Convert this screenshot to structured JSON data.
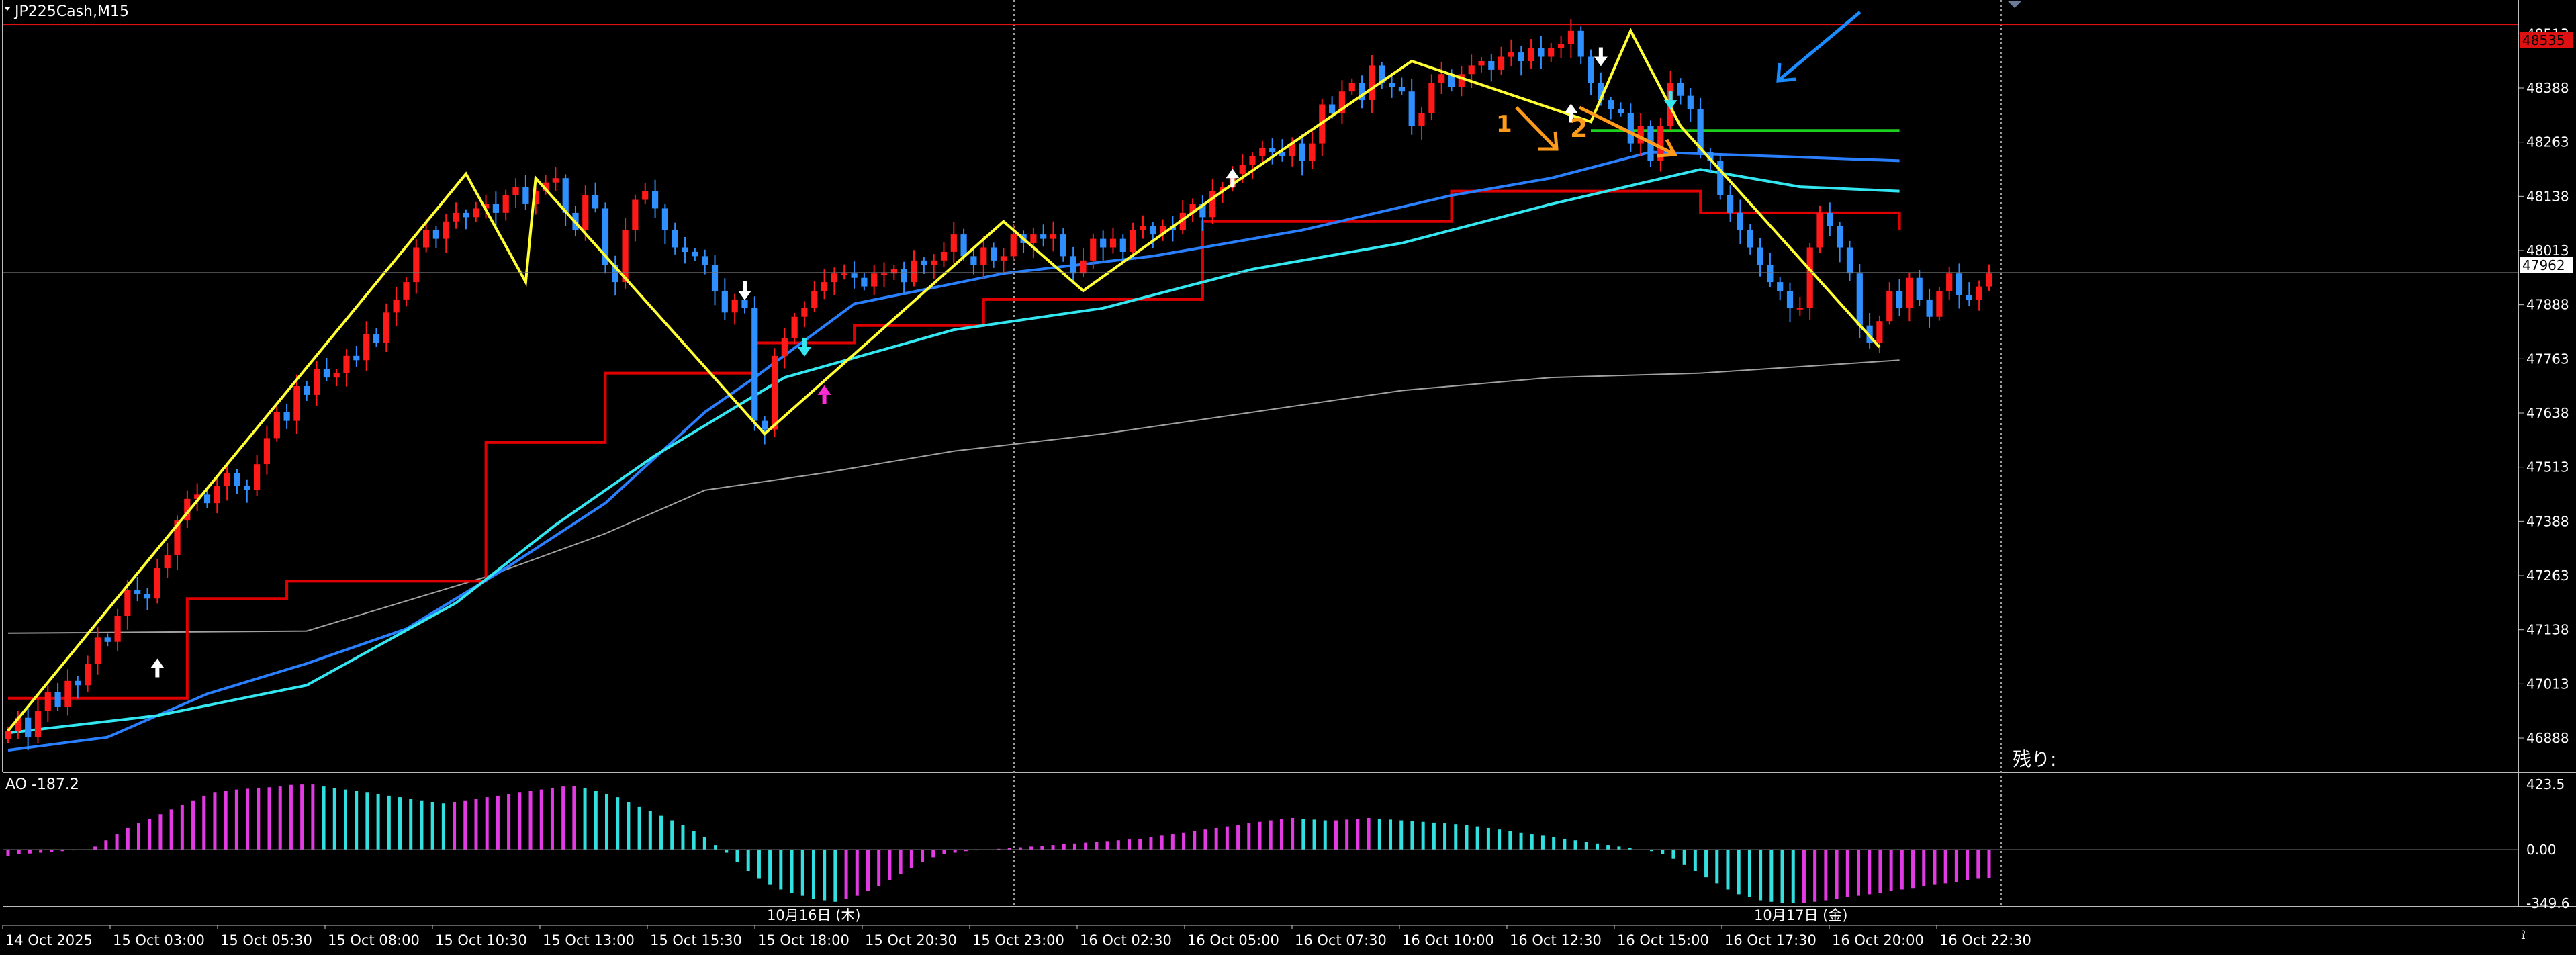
{
  "window": {
    "symbol_label": "JP225Cash,M15"
  },
  "colors": {
    "background": "#000000",
    "grid": "#cfcfcf",
    "bull_candle": "#ff1a1a",
    "bear_candle": "#2f8fff",
    "zigzag": "#ffff33",
    "red_line": "#e00000",
    "blue_line": "#2a7fff",
    "cyan_line": "#33e6f0",
    "green_line": "#1ed11e",
    "gray_line": "#a0a0a0",
    "ao_up": "#e33be3",
    "ao_down": "#33e0e0",
    "annotation": "#ff9a1a",
    "annotation_arrow": "#1a8cff"
  },
  "price_axis": {
    "ticks": [
      "48513",
      "48388",
      "48263",
      "48138",
      "48013",
      "47888",
      "47763",
      "47638",
      "47513",
      "47388",
      "47263",
      "47138",
      "47013",
      "46888"
    ],
    "current_price": "47962",
    "top_line_price": "48535"
  },
  "time_axis": {
    "labels": [
      "14 Oct 2025",
      "15 Oct 03:00",
      "15 Oct 05:30",
      "15 Oct 08:00",
      "15 Oct 10:30",
      "15 Oct 13:00",
      "15 Oct 15:30",
      "15 Oct 18:00",
      "15 Oct 20:30",
      "15 Oct 23:00",
      "16 Oct 02:30",
      "16 Oct 05:00",
      "16 Oct 07:30",
      "16 Oct 10:00",
      "16 Oct 12:30",
      "16 Oct 15:00",
      "16 Oct 17:30",
      "16 Oct 20:00",
      "16 Oct 22:30"
    ],
    "day_separators": [
      "10月16日 (木)",
      "10月17日 (金)"
    ]
  },
  "remaining_label": "残り:",
  "annotations": {
    "mark1": "1",
    "mark2": "2"
  },
  "ao": {
    "label": "AO -187.2",
    "ticks": [
      "423.5",
      "0.00",
      "-349.6"
    ]
  },
  "chart_data": {
    "type": "candlestick",
    "symbol": "JP225Cash",
    "timeframe": "M15",
    "price_range": [
      46840,
      48560
    ],
    "closes": [
      46905,
      46935,
      46890,
      46950,
      46995,
      46960,
      47020,
      47010,
      47060,
      47120,
      47110,
      47170,
      47230,
      47220,
      47210,
      47280,
      47310,
      47390,
      47440,
      47450,
      47430,
      47470,
      47500,
      47470,
      47460,
      47520,
      47580,
      47640,
      47620,
      47700,
      47680,
      47740,
      47720,
      47730,
      47770,
      47760,
      47820,
      47800,
      47870,
      47900,
      47940,
      48020,
      48060,
      48040,
      48080,
      48100,
      48090,
      48110,
      48120,
      48100,
      48140,
      48160,
      48120,
      48150,
      48170,
      48180,
      48100,
      48060,
      48140,
      48110,
      47980,
      47940,
      48060,
      48130,
      48150,
      48110,
      48060,
      48020,
      48010,
      48000,
      47980,
      47920,
      47870,
      47900,
      47880,
      47620,
      47600,
      47770,
      47810,
      47860,
      47880,
      47920,
      47940,
      47960,
      47960,
      47950,
      47930,
      47960,
      47960,
      47970,
      47940,
      47990,
      47980,
      47990,
      48010,
      48050,
      48000,
      47980,
      48020,
      47990,
      48000,
      48050,
      48030,
      48050,
      48040,
      48050,
      48000,
      47960,
      47990,
      48040,
      48020,
      48040,
      48010,
      48060,
      48070,
      48050,
      48070,
      48060,
      48100,
      48120,
      48090,
      48150,
      48160,
      48190,
      48210,
      48230,
      48250,
      48240,
      48230,
      48260,
      48220,
      48260,
      48350,
      48330,
      48380,
      48400,
      48360,
      48440,
      48400,
      48390,
      48380,
      48300,
      48330,
      48400,
      48420,
      48390,
      48420,
      48440,
      48450,
      48430,
      48460,
      48470,
      48450,
      48480,
      48460,
      48480,
      48490,
      48520,
      48460,
      48400,
      48360,
      48340,
      48330,
      48260,
      48300,
      48220,
      48300,
      48400,
      48370,
      48340,
      48240,
      48220,
      48140,
      48100,
      48060,
      48020,
      47980,
      47940,
      47920,
      47880,
      47880,
      48020,
      48100,
      48070,
      48020,
      47960,
      47840,
      47800,
      47850,
      47920,
      47880,
      47950,
      47900,
      47860,
      47920,
      47960,
      47910,
      47900,
      47930,
      47960
    ],
    "ao_values": [
      -40,
      -30,
      -25,
      -20,
      -15,
      -10,
      -5,
      0,
      20,
      60,
      100,
      140,
      170,
      200,
      230,
      260,
      290,
      320,
      350,
      370,
      380,
      390,
      395,
      400,
      405,
      410,
      420,
      423,
      423,
      410,
      400,
      390,
      380,
      370,
      360,
      350,
      340,
      330,
      320,
      310,
      300,
      310,
      320,
      330,
      340,
      350,
      360,
      370,
      380,
      390,
      400,
      410,
      415,
      400,
      380,
      360,
      340,
      310,
      280,
      250,
      220,
      190,
      160,
      120,
      80,
      30,
      -20,
      -80,
      -140,
      -190,
      -230,
      -260,
      -280,
      -300,
      -320,
      -330,
      -340,
      -320,
      -300,
      -270,
      -240,
      -200,
      -160,
      -120,
      -80,
      -50,
      -30,
      -20,
      -10,
      -5,
      0,
      5,
      10,
      15,
      20,
      25,
      30,
      35,
      40,
      45,
      50,
      55,
      60,
      65,
      70,
      80,
      90,
      100,
      110,
      120,
      130,
      140,
      150,
      160,
      170,
      180,
      190,
      200,
      205,
      200,
      195,
      190,
      190,
      195,
      200,
      205,
      200,
      195,
      190,
      185,
      180,
      175,
      170,
      165,
      160,
      150,
      140,
      130,
      120,
      110,
      100,
      90,
      80,
      70,
      60,
      50,
      40,
      30,
      20,
      10,
      0,
      -10,
      -30,
      -60,
      -100,
      -140,
      -180,
      -220,
      -260,
      -290,
      -310,
      -330,
      -340,
      -345,
      -349,
      -349,
      -340,
      -330,
      -320,
      -310,
      -300,
      -290,
      -280,
      -270,
      -260,
      -250,
      -240,
      -230,
      -220,
      -210,
      -200,
      -190,
      -187
    ],
    "ao_range": [
      -349.6,
      423.5
    ],
    "zigzag": [
      [
        0,
        46905
      ],
      [
        46,
        48190
      ],
      [
        52,
        47940
      ],
      [
        53,
        48180
      ],
      [
        76,
        47590
      ],
      [
        100,
        48080
      ],
      [
        108,
        47920
      ],
      [
        122,
        48150
      ],
      [
        141,
        48450
      ],
      [
        159,
        48310
      ],
      [
        163,
        48520
      ],
      [
        168,
        48300
      ],
      [
        188,
        47790
      ]
    ],
    "red_line": [
      [
        0,
        46980
      ],
      [
        18,
        46980
      ],
      [
        18,
        47210
      ],
      [
        28,
        47210
      ],
      [
        28,
        47250
      ],
      [
        48,
        47250
      ],
      [
        48,
        47570
      ],
      [
        60,
        47570
      ],
      [
        60,
        47730
      ],
      [
        75,
        47730
      ],
      [
        75,
        47800
      ],
      [
        85,
        47800
      ],
      [
        85,
        47840
      ],
      [
        98,
        47840
      ],
      [
        98,
        47900
      ],
      [
        120,
        47900
      ],
      [
        120,
        48080
      ],
      [
        145,
        48080
      ],
      [
        145,
        48150
      ],
      [
        170,
        48150
      ],
      [
        170,
        48100
      ],
      [
        190,
        48100
      ],
      [
        190,
        48060
      ]
    ],
    "blue_line": [
      [
        0,
        46860
      ],
      [
        10,
        46890
      ],
      [
        20,
        46990
      ],
      [
        30,
        47060
      ],
      [
        40,
        47140
      ],
      [
        50,
        47280
      ],
      [
        60,
        47430
      ],
      [
        70,
        47640
      ],
      [
        75,
        47720
      ],
      [
        85,
        47890
      ],
      [
        100,
        47960
      ],
      [
        115,
        48000
      ],
      [
        130,
        48060
      ],
      [
        145,
        48140
      ],
      [
        155,
        48180
      ],
      [
        165,
        48240
      ],
      [
        178,
        48230
      ],
      [
        190,
        48220
      ]
    ],
    "cyan_line": [
      [
        0,
        46900
      ],
      [
        15,
        46940
      ],
      [
        30,
        47010
      ],
      [
        45,
        47200
      ],
      [
        55,
        47380
      ],
      [
        65,
        47540
      ],
      [
        78,
        47720
      ],
      [
        95,
        47830
      ],
      [
        110,
        47880
      ],
      [
        125,
        47970
      ],
      [
        140,
        48030
      ],
      [
        155,
        48120
      ],
      [
        170,
        48200
      ],
      [
        180,
        48160
      ],
      [
        190,
        48150
      ]
    ],
    "green_line": [
      [
        159,
        48290
      ],
      [
        190,
        48290
      ]
    ],
    "gray_line": [
      [
        0,
        47130
      ],
      [
        30,
        47135
      ],
      [
        48,
        47260
      ],
      [
        60,
        47360
      ],
      [
        70,
        47460
      ],
      [
        82,
        47500
      ],
      [
        95,
        47550
      ],
      [
        110,
        47590
      ],
      [
        125,
        47640
      ],
      [
        140,
        47690
      ],
      [
        155,
        47720
      ],
      [
        170,
        47730
      ],
      [
        190,
        47760
      ]
    ],
    "arrows": [
      {
        "i": 15,
        "price": 47050,
        "dir": "up",
        "color": "white"
      },
      {
        "i": 74,
        "price": 47920,
        "dir": "down",
        "color": "white"
      },
      {
        "i": 80,
        "price": 47790,
        "dir": "down",
        "color": "cyan"
      },
      {
        "i": 82,
        "price": 47680,
        "dir": "up",
        "color": "magenta"
      },
      {
        "i": 123,
        "price": 48180,
        "dir": "up",
        "color": "white"
      },
      {
        "i": 157,
        "price": 48330,
        "dir": "up",
        "color": "white"
      },
      {
        "i": 160,
        "price": 48460,
        "dir": "down",
        "color": "white"
      },
      {
        "i": 167,
        "price": 48360,
        "dir": "down",
        "color": "cyan"
      }
    ]
  }
}
